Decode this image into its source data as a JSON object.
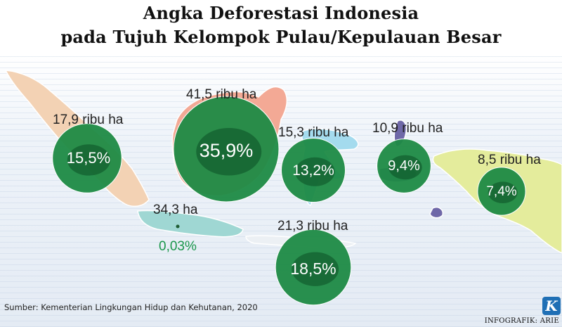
{
  "title": {
    "line1": "Angka Deforestasi Indonesia",
    "line2": "pada Tujuh Kelompok Pulau/Kepulauan Besar"
  },
  "regions": [
    {
      "id": "sumatera",
      "area": "17,9 ribu ha",
      "percent": "15,5%",
      "area_kha": 17.9,
      "share_pct": 15.5,
      "land_color": "#f3d2b4"
    },
    {
      "id": "kalimantan",
      "area": "41,5 ribu ha",
      "percent": "35,9%",
      "area_kha": 41.5,
      "share_pct": 35.9,
      "land_color": "#f3a995"
    },
    {
      "id": "jawa",
      "area": "34,3 ha",
      "percent": "0,03%",
      "area_kha": 0.0343,
      "share_pct": 0.03,
      "land_color": "#9fd7d3"
    },
    {
      "id": "sulawesi",
      "area": "15,3 ribu ha",
      "percent": "13,2%",
      "area_kha": 15.3,
      "share_pct": 13.2,
      "land_color": "#a4dbee"
    },
    {
      "id": "bali-nusa-tenggara",
      "area": "21,3 ribu ha",
      "percent": "18,5%",
      "area_kha": 21.3,
      "share_pct": 18.5,
      "land_color": "#ecf0f4"
    },
    {
      "id": "maluku",
      "area": "10,9 ribu ha",
      "percent": "9,4%",
      "area_kha": 10.9,
      "share_pct": 9.4,
      "land_color": "#6f68a8"
    },
    {
      "id": "papua",
      "area": "8,5 ribu ha",
      "percent": "7,4%",
      "area_kha": 8.5,
      "share_pct": 7.4,
      "land_color": "#e4ec9c"
    }
  ],
  "colors": {
    "bubble": "#1e8a45",
    "bubble_dark": "#0b4f24",
    "small_percent": "#19964a",
    "brand": "#1f6fb5"
  },
  "source": "Sumber: Kementerian Lingkungan Hidup dan Kehutanan, 2020",
  "credit": "INFOGRAFIK: ARIE",
  "logo_letter": "K"
}
